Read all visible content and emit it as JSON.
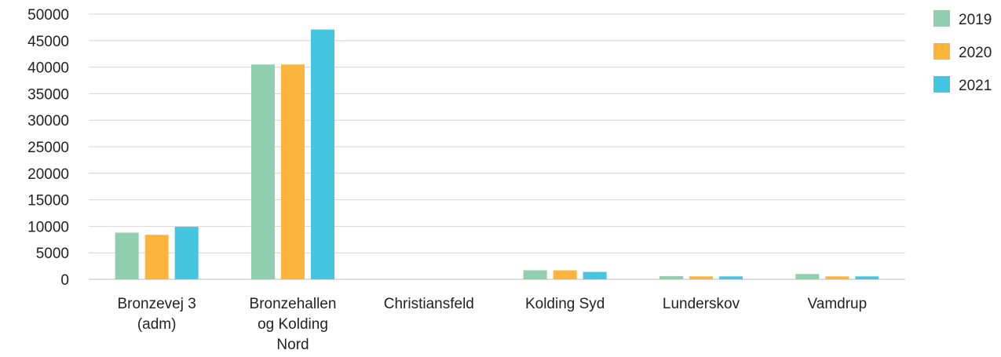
{
  "chart_data": {
    "type": "bar",
    "title": "",
    "xlabel": "",
    "ylabel": "",
    "ylim": [
      0,
      50000
    ],
    "yticks": [
      0,
      5000,
      10000,
      15000,
      20000,
      25000,
      30000,
      35000,
      40000,
      45000,
      50000
    ],
    "grid": true,
    "legend_position": "right",
    "categories": [
      [
        "Bronzevej 3",
        "(adm)"
      ],
      [
        "Bronzehallen",
        "og Kolding",
        "Nord"
      ],
      [
        "Christiansfeld"
      ],
      [
        "Kolding Syd"
      ],
      [
        "Lunderskov"
      ],
      [
        "Vamdrup"
      ]
    ],
    "series": [
      {
        "name": "2019",
        "color": "#8fcfb0",
        "values": [
          8800,
          40500,
          0,
          1700,
          600,
          1000
        ]
      },
      {
        "name": "2020",
        "color": "#fbb53d",
        "values": [
          8400,
          40500,
          0,
          1700,
          550,
          550
        ]
      },
      {
        "name": "2021",
        "color": "#45c6e0",
        "values": [
          9900,
          47100,
          0,
          1400,
          550,
          550
        ]
      }
    ]
  }
}
